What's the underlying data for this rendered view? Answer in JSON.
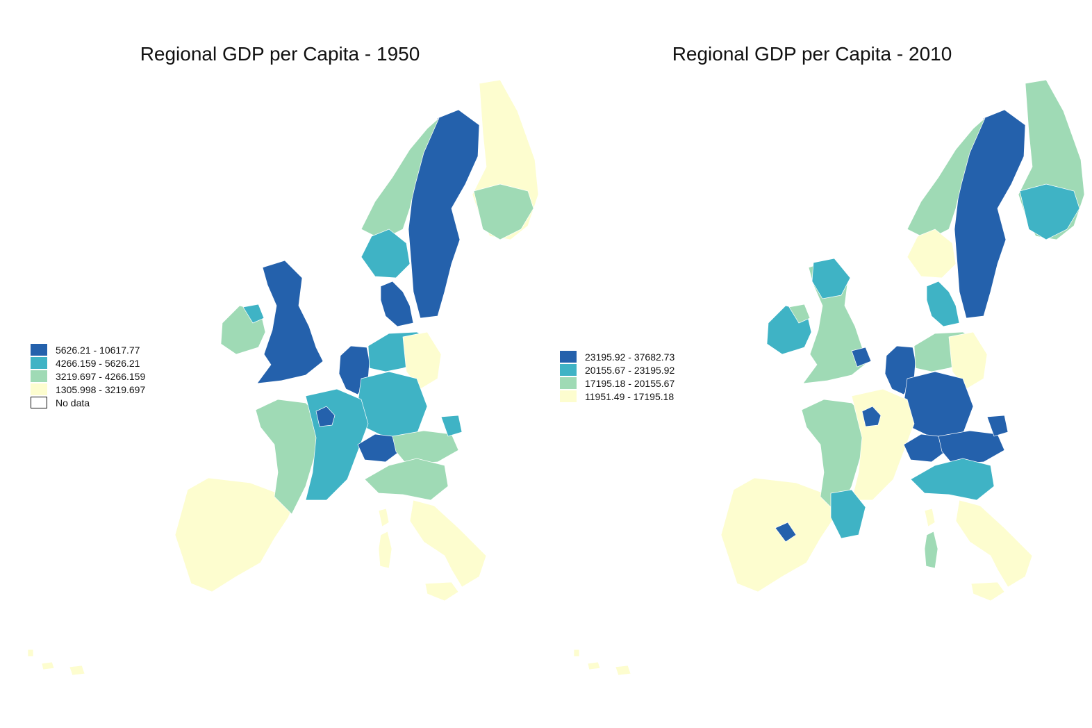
{
  "colors": {
    "class1": "#2461ac",
    "class2": "#3fb3c5",
    "class3": "#9fdab5",
    "class4": "#fdfdcf",
    "nodata": "#ffffff"
  },
  "maps": [
    {
      "title": "Regional GDP per Capita - 1950",
      "legend": [
        {
          "label": "5626.21 - 10617.77",
          "class": "class1"
        },
        {
          "label": "4266.159 - 5626.21",
          "class": "class2"
        },
        {
          "label": "3219.697 - 4266.159",
          "class": "class3"
        },
        {
          "label": "1305.998 - 3219.697",
          "class": "class4"
        },
        {
          "label": "No data",
          "class": "nodata"
        }
      ],
      "regions": {
        "iberia": "class4",
        "sweden": "class1",
        "finland": "class4",
        "finland_south": "class3",
        "norway_north": "class3",
        "norway_south": "class2",
        "uk": "class1",
        "ireland": "class3",
        "nireland": "class2",
        "denmark": "class1",
        "benelux": "class1",
        "germany_north": "class2",
        "germany_east": "class4",
        "germany_south": "class2",
        "france_west": "class3",
        "france_center": "class2",
        "paris": "class1",
        "switzerland": "class1",
        "austria": "class3",
        "czech_south": "class2",
        "italy_north": "class3",
        "italy_south": "class4",
        "sardinia": "class4",
        "corsica": "class4",
        "sicily": "class4",
        "canaries": "class4"
      }
    },
    {
      "title": "Regional GDP per Capita - 2010",
      "legend": [
        {
          "label": "23195.92 - 37682.73",
          "class": "class1"
        },
        {
          "label": "20155.67 - 23195.92",
          "class": "class2"
        },
        {
          "label": "17195.18 - 20155.67",
          "class": "class3"
        },
        {
          "label": "11951.49 - 17195.18",
          "class": "class4"
        }
      ],
      "regions": {
        "iberia": "class4",
        "sweden": "class1",
        "finland": "class3",
        "finland_south": "class2",
        "norway_north": "class3",
        "norway_south": "class4",
        "uk": "class3",
        "ireland": "class2",
        "nireland": "class3",
        "denmark": "class2",
        "benelux": "class1",
        "germany_north": "class3",
        "germany_east": "class4",
        "germany_south": "class1",
        "france_west": "class3",
        "france_center": "class4",
        "paris": "class1",
        "switzerland": "class1",
        "austria": "class1",
        "czech_south": "class1",
        "italy_north": "class2",
        "italy_south": "class4",
        "sardinia": "class3",
        "corsica": "class4",
        "sicily": "class4",
        "canaries": "class4",
        "catalonia": "class2",
        "madrid": "class1",
        "london": "class1",
        "scotland": "class2"
      }
    }
  ]
}
